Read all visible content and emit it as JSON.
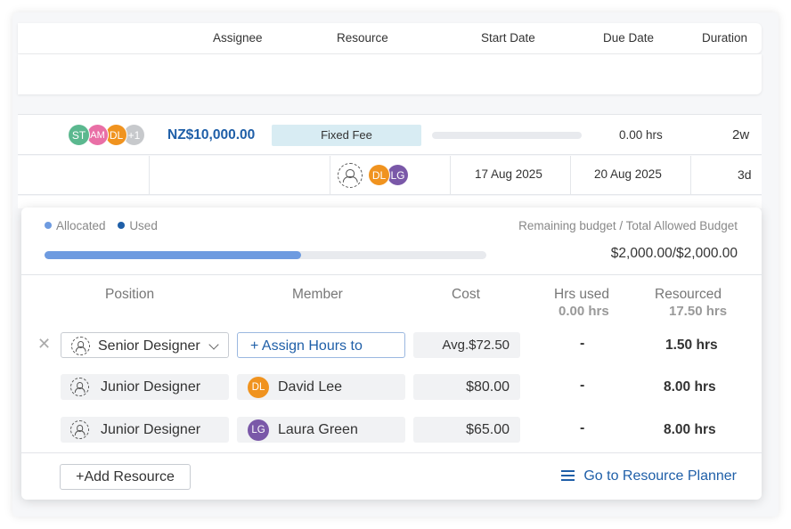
{
  "header": {
    "assignee": "Assignee",
    "resource": "Resource",
    "start_date": "Start Date",
    "due_date": "Due Date",
    "duration": "Duration"
  },
  "row_task": {
    "assignees": [
      {
        "initials": "ST",
        "color": "#5bb88f"
      },
      {
        "initials": "AM",
        "color": "#e96fa6"
      },
      {
        "initials": "DL",
        "color": "#f0931f"
      },
      {
        "initials": "+1",
        "color": "#c7c9cc"
      }
    ],
    "price": "NZ$10,000.00",
    "fee_type": "Fixed Fee",
    "progress": 0,
    "hours": "0.00 hrs",
    "duration": "2w"
  },
  "row_sub": {
    "resources": [
      {
        "initials": "DL",
        "color": "#f0931f"
      },
      {
        "initials": "LG",
        "color": "#7a58a8"
      }
    ],
    "start_date": "17 Aug 2025",
    "due_date": "20 Aug 2025",
    "duration": "3d"
  },
  "popup": {
    "legend_allocated": "Allocated",
    "legend_used": "Used",
    "allocated_color": "#6e9be0",
    "used_color": "#1f5fa8",
    "remaining_label": "Remaining budget / Total Allowed Budget",
    "budget_fill": 0.58,
    "budget_amount": "$2,000.00/$2,000.00",
    "columns": {
      "position": "Position",
      "member": "Member",
      "cost": "Cost",
      "hrs_used": "Hrs used",
      "hrs_used_total": "0.00 hrs",
      "resourced": "Resourced",
      "resourced_total": "17.50 hrs"
    },
    "rows": [
      {
        "position": "Senior Designer",
        "member": "+ Assign Hours to",
        "cost": "Avg.$72.50",
        "hrs_used": "-",
        "resourced": "1.50 hrs"
      },
      {
        "position": "Junior Designer",
        "member": "David Lee",
        "member_initials": "DL",
        "member_color": "#f0931f",
        "cost": "$80.00",
        "hrs_used": "-",
        "resourced": "8.00 hrs"
      },
      {
        "position": "Junior Designer",
        "member": "Laura Green",
        "member_initials": "LG",
        "member_color": "#7a58a8",
        "cost": "$65.00",
        "hrs_used": "-",
        "resourced": "8.00 hrs"
      }
    ],
    "add_resource": "+Add Resource",
    "go_to_planner": "Go to Resource Planner"
  }
}
